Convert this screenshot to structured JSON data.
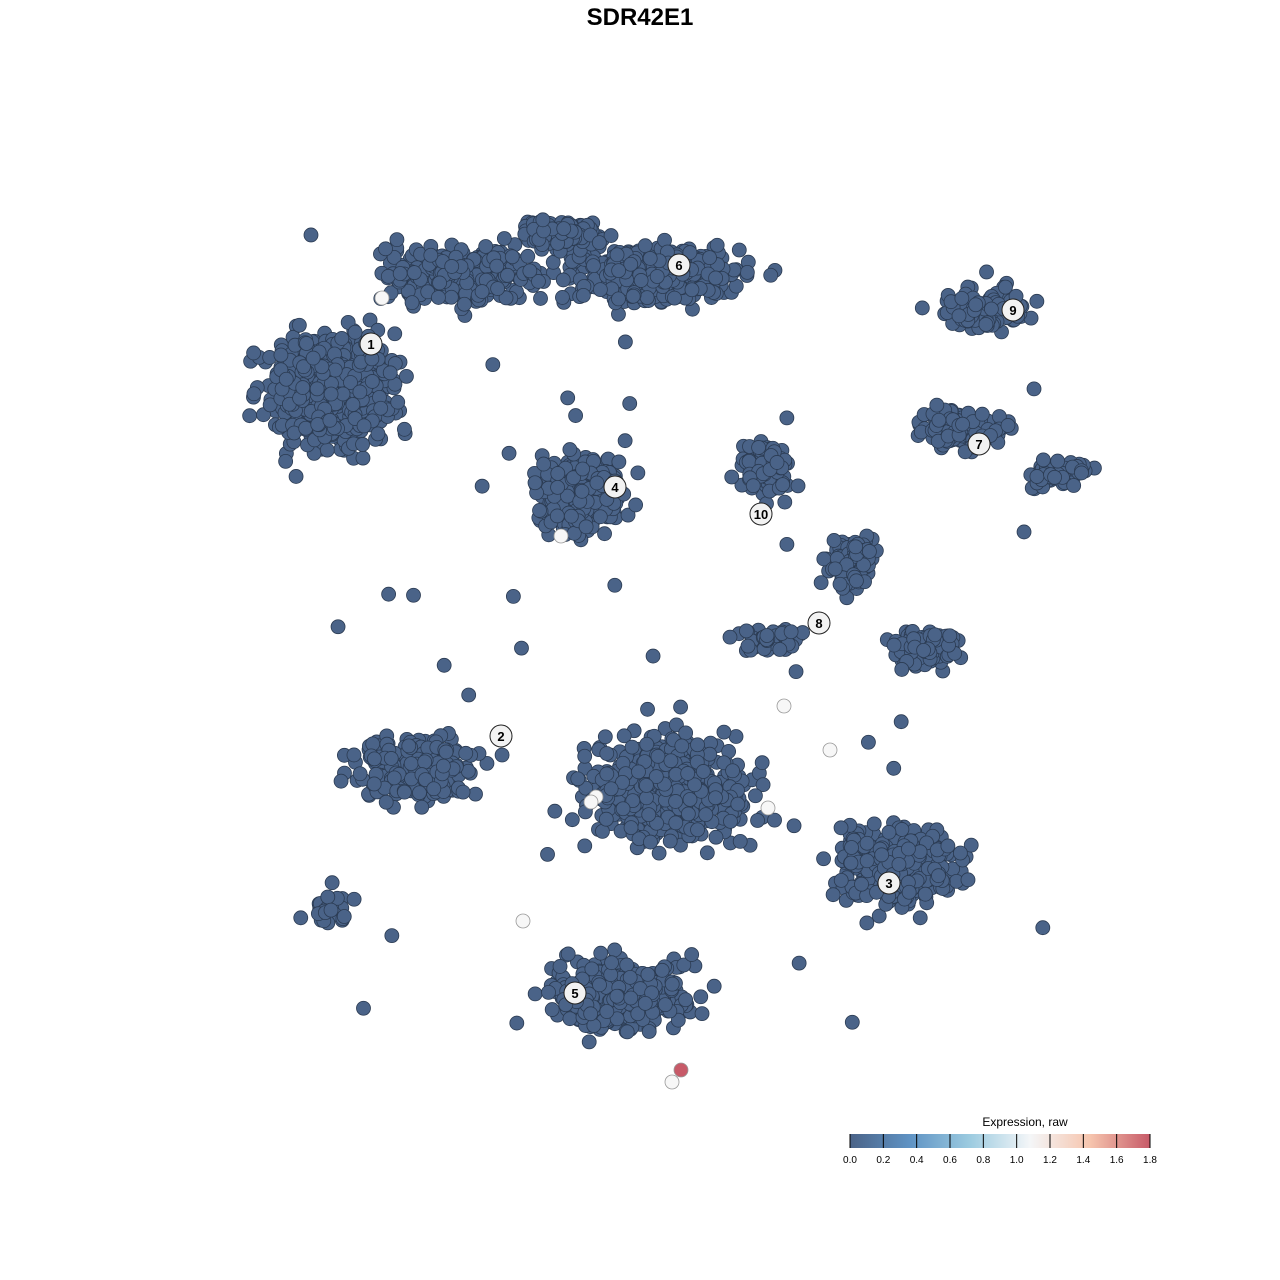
{
  "chart_data": {
    "type": "scatter",
    "title": "SDR42E1",
    "xlabel": "",
    "ylabel": "",
    "axes_visible": false,
    "grid": false,
    "clusters": [
      "1",
      "2",
      "3",
      "4",
      "5",
      "6",
      "7",
      "8",
      "9",
      "10"
    ],
    "point_color_default": "#4a6388",
    "highlighted_cells": [
      {
        "cluster": "1",
        "expression": 1.0
      },
      {
        "cluster": "4",
        "expression": 1.0
      },
      {
        "cluster": "5",
        "expression": 1.0
      },
      {
        "cluster": "5",
        "expression": 1.0
      },
      {
        "cluster": "5",
        "expression": 1.0
      },
      {
        "cluster": "5",
        "expression": 1.0
      },
      {
        "cluster": "5",
        "expression": 1.8
      },
      {
        "cluster": "8",
        "expression": 1.0
      },
      {
        "cluster": "3",
        "expression": 1.0
      },
      {
        "cluster": "3",
        "expression": 1.0
      }
    ],
    "legend": {
      "title": "Expression, raw",
      "position": "bottom-right",
      "ticks": [
        "0.0",
        "0.2",
        "0.4",
        "0.6",
        "0.8",
        "1.0",
        "1.2",
        "1.4",
        "1.6",
        "1.8"
      ],
      "range": [
        0,
        1.8
      ],
      "colors": [
        "#4a6388",
        "#5f93c4",
        "#9ccbe0",
        "#f4f6f8",
        "#f6c5ae",
        "#c75a68"
      ]
    }
  }
}
